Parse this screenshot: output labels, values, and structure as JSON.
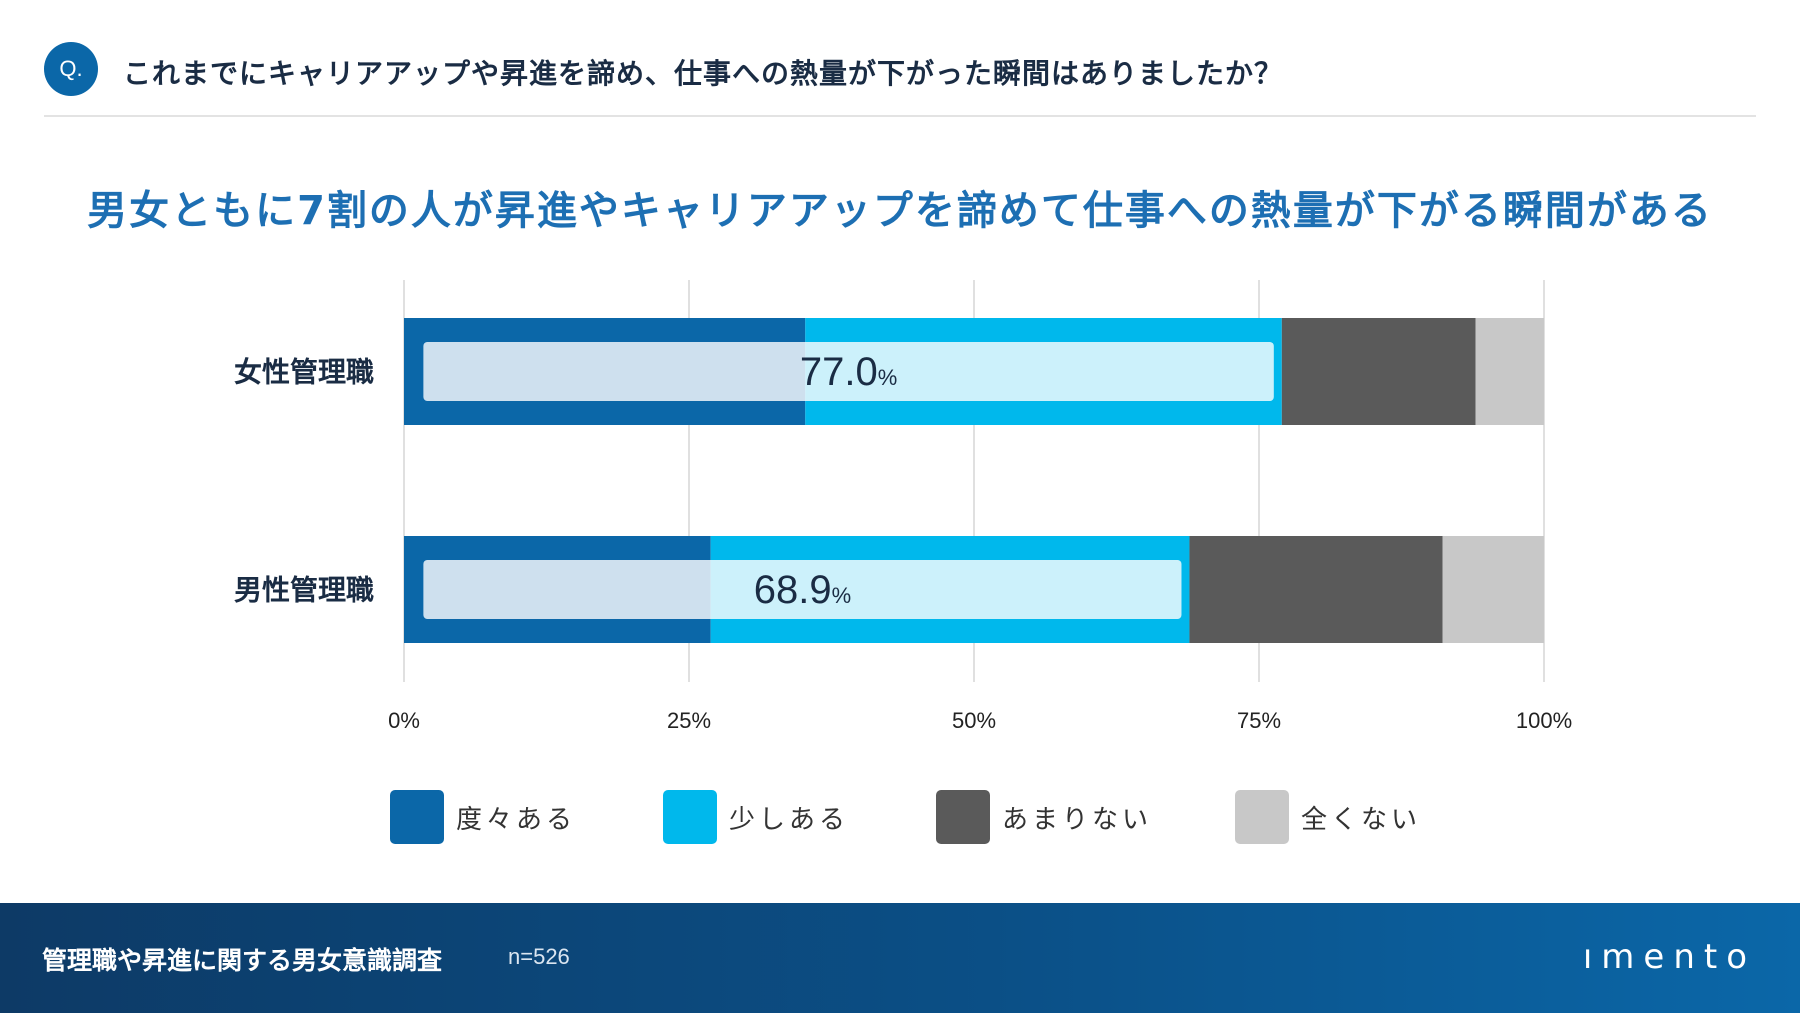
{
  "question": {
    "badge": "Q.",
    "text": "これまでにキャリアアップや昇進を諦め、仕事への熱量が下がった瞬間はありましたか？"
  },
  "headline": "男女ともに7割の人が昇進やキャリアアップを諦めて仕事への熱量が下がる瞬間がある",
  "chart_data": {
    "type": "bar",
    "orientation": "horizontal",
    "stacked": true,
    "categories": [
      "女性管理職",
      "男性管理職"
    ],
    "series": [
      {
        "name": "度々ある",
        "color": "#0b67a8",
        "values": [
          35.2,
          26.9
        ]
      },
      {
        "name": "少しある",
        "color": "#00b8ec",
        "values": [
          41.8,
          42.0
        ]
      },
      {
        "name": "あまりない",
        "color": "#5a5a5a",
        "values": [
          17.0,
          22.2
        ]
      },
      {
        "name": "全くない",
        "color": "#c8c8c8",
        "values": [
          6.0,
          8.9
        ]
      }
    ],
    "totals": [
      {
        "value": "77.0",
        "unit": "%",
        "percent": 77.0
      },
      {
        "value": "68.9",
        "unit": "%",
        "percent": 68.9
      }
    ],
    "xlim": [
      0,
      100
    ],
    "xticks": [
      {
        "value": 0,
        "label": "0%"
      },
      {
        "value": 25,
        "label": "25%"
      },
      {
        "value": 50,
        "label": "50%"
      },
      {
        "value": 75,
        "label": "75%"
      },
      {
        "value": 100,
        "label": "100%"
      }
    ],
    "grid": true,
    "legend_position": "bottom"
  },
  "footer": {
    "title": "管理職や昇進に関する男女意識調査",
    "n": "n=526",
    "logo": "ımento"
  }
}
